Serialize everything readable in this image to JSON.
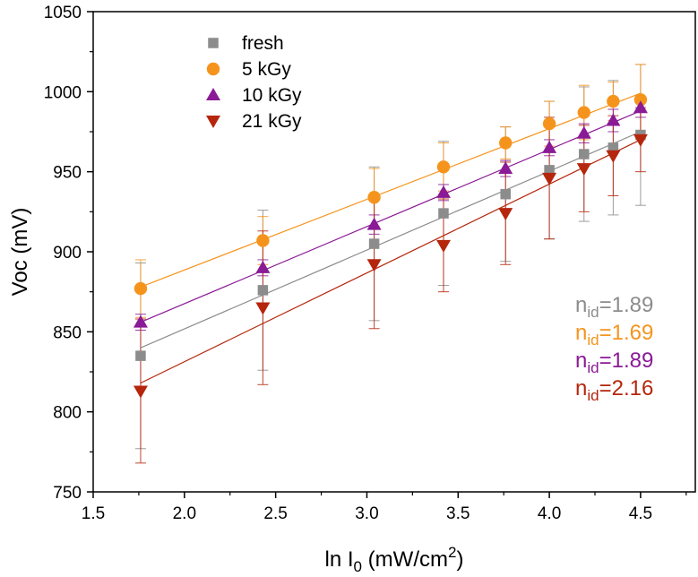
{
  "chart_data": {
    "type": "scatter",
    "xlabel": {
      "main": "ln I",
      "sub": "0",
      "mid": " (mW/cm",
      "sup": "2",
      "end": ")"
    },
    "ylabel": "Voc (mV)",
    "xlim": [
      1.5,
      4.8
    ],
    "ylim": [
      750,
      1050
    ],
    "xticks": [
      1.5,
      2.0,
      2.5,
      3.0,
      3.5,
      4.0,
      4.5
    ],
    "xtick_labels": [
      "1.5",
      "2.0",
      "2.5",
      "3.0",
      "3.5",
      "4.0",
      "4.5"
    ],
    "yticks": [
      750,
      800,
      850,
      900,
      950,
      1000,
      1050
    ],
    "ytick_labels": [
      "750",
      "800",
      "850",
      "900",
      "950",
      "1000",
      "1050"
    ],
    "legend_position": "top-left",
    "x": [
      1.76,
      2.43,
      3.04,
      3.42,
      3.76,
      4.0,
      4.19,
      4.35,
      4.5
    ],
    "series": [
      {
        "name": "fresh",
        "marker": "square",
        "color": "#8c8c8c",
        "y": [
          835,
          876,
          905,
          924,
          936,
          951,
          961,
          965,
          973
        ],
        "err": [
          58,
          50,
          48,
          45,
          42,
          43,
          42,
          42,
          44
        ],
        "fit": [
          [
            1.76,
            840
          ],
          [
            4.5,
            975
          ]
        ],
        "n_id": "1.89"
      },
      {
        "name": "5 kGy",
        "marker": "circle",
        "color": "#f5941d",
        "y": [
          877,
          907,
          934,
          953,
          968,
          980,
          987,
          994,
          995
        ],
        "err": [
          18,
          15,
          18,
          15,
          10,
          14,
          17,
          12,
          22
        ],
        "fit": [
          [
            1.76,
            878
          ],
          [
            4.5,
            999
          ]
        ],
        "n_id": "1.69"
      },
      {
        "name": "10 kGy",
        "marker": "triangle-up",
        "color": "#8a1a96",
        "y": [
          856,
          890,
          917,
          937,
          952,
          965,
          974,
          982,
          990
        ],
        "err": [
          5,
          5,
          6,
          5,
          5,
          5,
          6,
          7,
          6
        ],
        "fit": [
          [
            1.76,
            856
          ],
          [
            4.5,
            988
          ]
        ],
        "n_id": "1.89"
      },
      {
        "name": "21 kGy",
        "marker": "triangle-down",
        "color": "#b5260c",
        "y": [
          813,
          865,
          892,
          904,
          924,
          946,
          952,
          960,
          970
        ],
        "err": [
          45,
          48,
          40,
          29,
          32,
          38,
          27,
          25,
          20
        ],
        "fit": [
          [
            1.76,
            818
          ],
          [
            4.5,
            970
          ]
        ],
        "n_id": "2.16"
      }
    ],
    "annotation_prefix": "n",
    "annotation_sub": "id",
    "annotation_eq": "="
  }
}
